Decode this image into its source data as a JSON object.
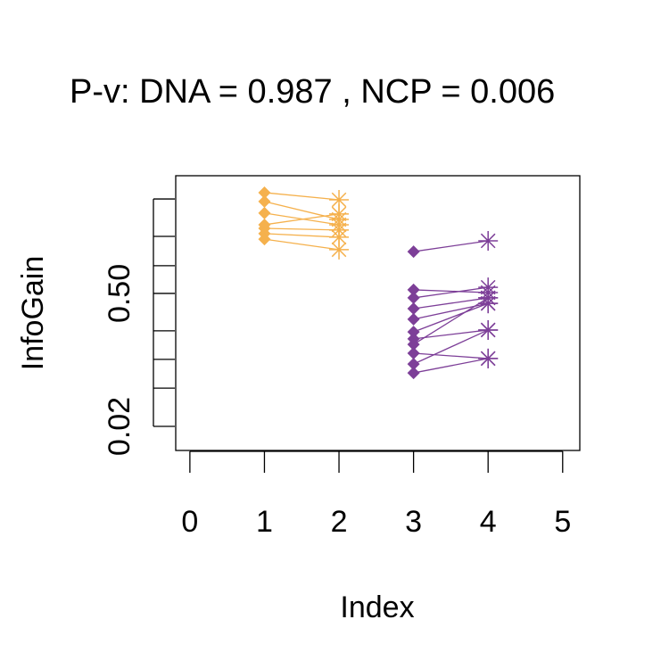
{
  "chart_data": {
    "type": "line",
    "title": "P-v: DNA = 0.987 , NCP = 0.006",
    "xlabel": "Index",
    "ylabel": "InfoGain",
    "xlim": [
      -0.19,
      5.23
    ],
    "xticks": [
      0,
      1,
      2,
      3,
      4,
      5
    ],
    "ylim": [
      -0.067,
      0.925
    ],
    "yticks": [
      {
        "value": 0.02,
        "label": "0.02"
      },
      {
        "value": 0.5,
        "label": "0.50"
      }
    ],
    "yticks_unlabeled": [
      0.158,
      0.262,
      0.365,
      0.6,
      0.706,
      0.841
    ],
    "series": [
      {
        "color": "#f5b14d",
        "x": [
          1,
          2
        ],
        "values": [
          0.864,
          0.838
        ]
      },
      {
        "color": "#f5b14d",
        "x": [
          1,
          2
        ],
        "values": [
          0.832,
          0.767
        ]
      },
      {
        "color": "#f5b14d",
        "x": [
          1,
          2
        ],
        "values": [
          0.79,
          0.748
        ]
      },
      {
        "color": "#f5b14d",
        "x": [
          1,
          2
        ],
        "values": [
          0.748,
          0.787
        ]
      },
      {
        "color": "#f5b14d",
        "x": [
          1,
          2
        ],
        "values": [
          0.735,
          0.729
        ]
      },
      {
        "color": "#f5b14d",
        "x": [
          1,
          2
        ],
        "values": [
          0.716,
          0.703
        ]
      },
      {
        "color": "#f5b14d",
        "x": [
          1,
          2
        ],
        "values": [
          0.696,
          0.658
        ]
      },
      {
        "color": "#7d3f98",
        "x": [
          3,
          4
        ],
        "values": [
          0.651,
          0.69
        ]
      },
      {
        "color": "#7d3f98",
        "x": [
          3,
          4
        ],
        "values": [
          0.513,
          0.503
        ]
      },
      {
        "color": "#7d3f98",
        "x": [
          3,
          4
        ],
        "values": [
          0.484,
          0.522
        ]
      },
      {
        "color": "#7d3f98",
        "x": [
          3,
          4
        ],
        "values": [
          0.445,
          0.484
        ]
      },
      {
        "color": "#7d3f98",
        "x": [
          3,
          4
        ],
        "values": [
          0.407,
          0.464
        ]
      },
      {
        "color": "#7d3f98",
        "x": [
          3,
          4
        ],
        "values": [
          0.361,
          0.464
        ]
      },
      {
        "color": "#7d3f98",
        "x": [
          3,
          4
        ],
        "values": [
          0.336,
          0.368
        ]
      },
      {
        "color": "#7d3f98",
        "x": [
          3,
          4
        ],
        "values": [
          0.316,
          0.484
        ]
      },
      {
        "color": "#7d3f98",
        "x": [
          3,
          4
        ],
        "values": [
          0.284,
          0.265
        ]
      },
      {
        "color": "#7d3f98",
        "x": [
          3,
          4
        ],
        "values": [
          0.245,
          0.368
        ]
      },
      {
        "color": "#7d3f98",
        "x": [
          3,
          4
        ],
        "values": [
          0.213,
          0.265
        ]
      }
    ]
  }
}
